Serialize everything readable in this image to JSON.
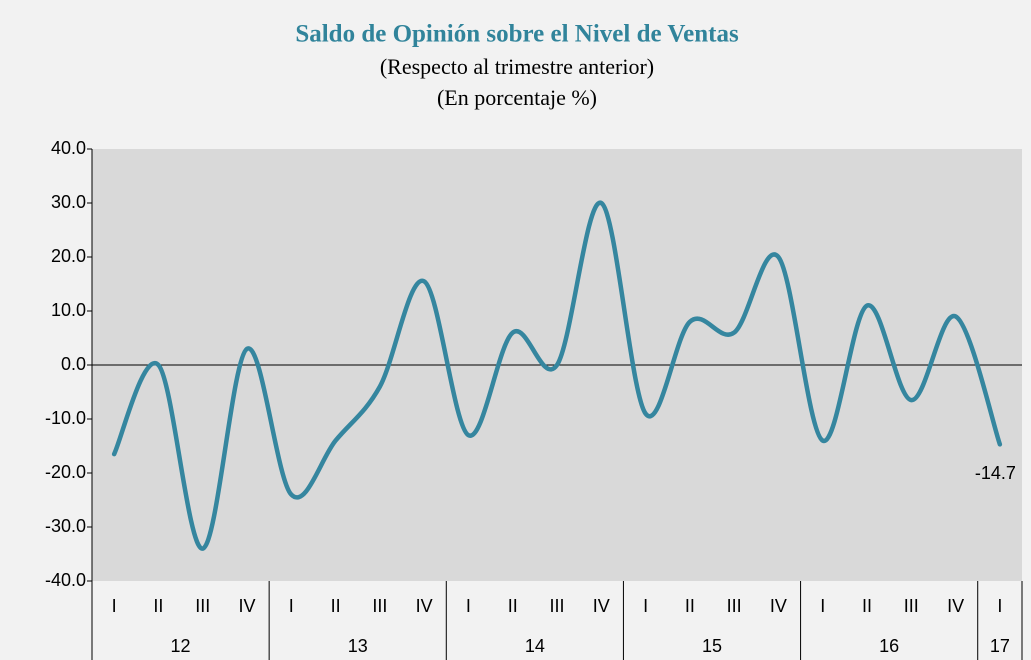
{
  "chart_data": {
    "type": "line",
    "title": "Saldo de Opinión sobre el Nivel de Ventas",
    "subtitle": [
      "(Respecto al trimestre anterior)",
      "(En porcentaje %)"
    ],
    "category_groups": [
      {
        "name": "12",
        "categories": [
          "I",
          "II",
          "III",
          "IV"
        ]
      },
      {
        "name": "13",
        "categories": [
          "I",
          "II",
          "III",
          "IV"
        ]
      },
      {
        "name": "14",
        "categories": [
          "I",
          "II",
          "III",
          "IV"
        ]
      },
      {
        "name": "15",
        "categories": [
          "I",
          "II",
          "III",
          "IV"
        ]
      },
      {
        "name": "16",
        "categories": [
          "I",
          "II",
          "III",
          "IV"
        ]
      },
      {
        "name": "17",
        "categories": [
          "I"
        ]
      }
    ],
    "series": [
      {
        "color": "#35869f",
        "values": [
          -16.5,
          0.0,
          -34.0,
          3.0,
          -24.0,
          -14.0,
          -4.0,
          15.5,
          -13.0,
          6.0,
          0.0,
          30.0,
          -9.0,
          8.0,
          6.0,
          20.0,
          -14.0,
          11.0,
          -6.5,
          9.0,
          -14.7
        ],
        "value_labels": [
          null,
          null,
          null,
          null,
          null,
          null,
          null,
          null,
          null,
          null,
          null,
          null,
          null,
          null,
          null,
          null,
          null,
          null,
          null,
          null,
          "-14.7"
        ]
      }
    ],
    "ylim": [
      -40,
      40
    ],
    "yticks": [
      {
        "value": -40,
        "label": "-40.0"
      },
      {
        "value": -30,
        "label": "-30.0"
      },
      {
        "value": -20,
        "label": "-20.0"
      },
      {
        "value": -10,
        "label": "-10.0"
      },
      {
        "value": 0,
        "label": "0.0"
      },
      {
        "value": 10,
        "label": "10.0"
      },
      {
        "value": 20,
        "label": "20.0"
      },
      {
        "value": 30,
        "label": "30.0"
      },
      {
        "value": 40,
        "label": "40.0"
      }
    ],
    "grid": false,
    "smooth": true
  }
}
